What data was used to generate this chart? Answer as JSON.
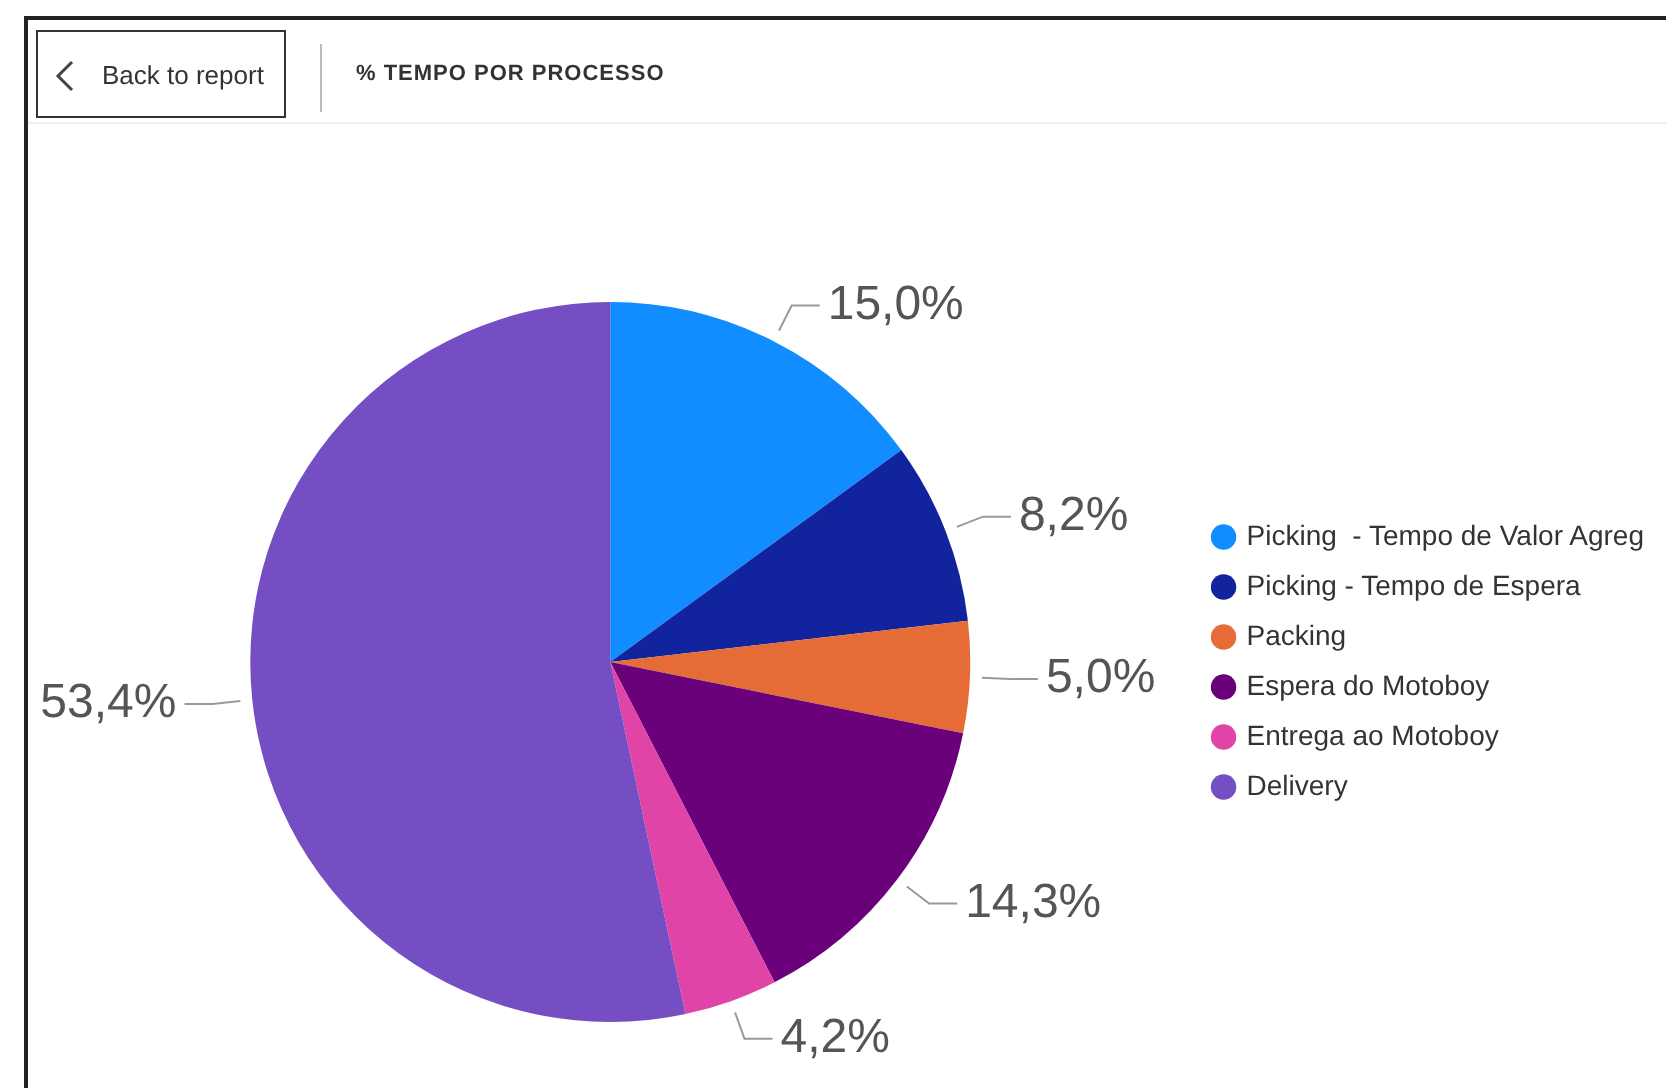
{
  "chart_data": {
    "type": "pie",
    "title": "% TEMPO POR PROCESSO",
    "categories": [
      "Picking  - Tempo de Valor Agreg",
      "Picking - Tempo de Espera",
      "Packing",
      "Espera do Motoboy",
      "Entrega ao Motoboy",
      "Delivery"
    ],
    "values": [
      15.0,
      8.2,
      5.0,
      14.3,
      4.2,
      53.4
    ],
    "colors": [
      "#118dff",
      "#12239e",
      "#e66c37",
      "#6b007b",
      "#e044a7",
      "#744ec2"
    ],
    "value_labels": [
      "15,0%",
      "8,2%",
      "5,0%",
      "14,3%",
      "4,2%",
      "53,4%"
    ],
    "legend": "right",
    "annotations": [
      "Back to report"
    ]
  }
}
